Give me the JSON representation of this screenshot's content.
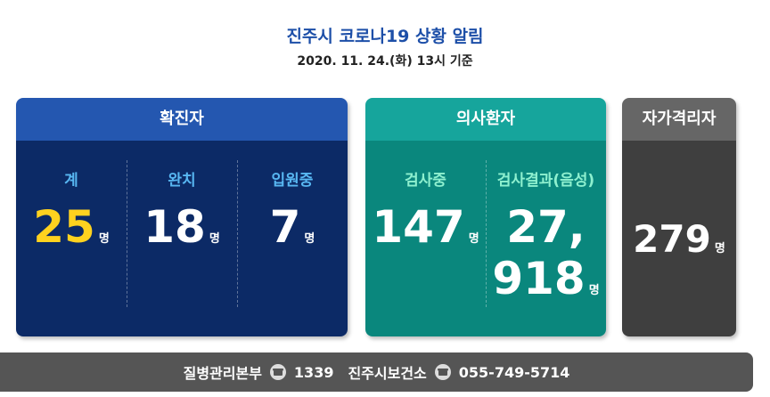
{
  "header": {
    "title": "진주시 코로나19 상황 알림",
    "subtitle": "2020. 11. 24.(화) 13시 기준"
  },
  "unit": "명",
  "cards": [
    {
      "title": "확진자",
      "columns": [
        {
          "label": "계",
          "value": 25
        },
        {
          "label": "완치",
          "value": 18
        },
        {
          "label": "입원중",
          "value": 7
        }
      ]
    },
    {
      "title": "의사환자",
      "columns": [
        {
          "label": "검사중",
          "value": 147
        },
        {
          "label": "검사결과(음성)",
          "value": "27,918"
        }
      ]
    },
    {
      "title": "자가격리자",
      "columns": [
        {
          "value": 279
        }
      ]
    }
  ],
  "footer": [
    {
      "org": "질병관리본부",
      "phone": "1339"
    },
    {
      "org": "진주시보건소",
      "phone": "055-749-5714"
    }
  ]
}
